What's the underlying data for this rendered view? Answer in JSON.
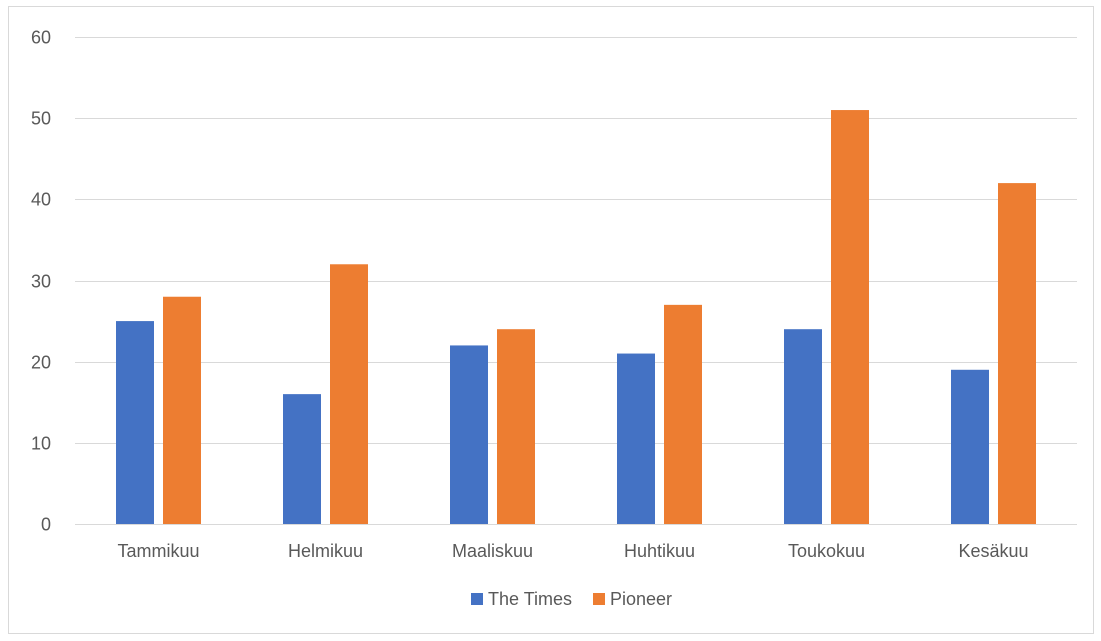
{
  "chart_data": {
    "type": "bar",
    "title": "",
    "xlabel": "",
    "ylabel": "",
    "categories": [
      "Tammikuu",
      "Helmikuu",
      "Maaliskuu",
      "Huhtikuu",
      "Toukokuu",
      "Kesäkuu"
    ],
    "series": [
      {
        "name": "The Times",
        "values": [
          25,
          16,
          22,
          21,
          24,
          19
        ],
        "color": "#4472c4"
      },
      {
        "name": "Pioneer",
        "values": [
          28,
          32,
          24,
          27,
          51,
          42
        ],
        "color": "#ed7d31"
      }
    ],
    "ylim": [
      0,
      60
    ],
    "yticks": [
      0,
      10,
      20,
      30,
      40,
      50,
      60
    ],
    "grid": true,
    "legend_position": "bottom"
  }
}
